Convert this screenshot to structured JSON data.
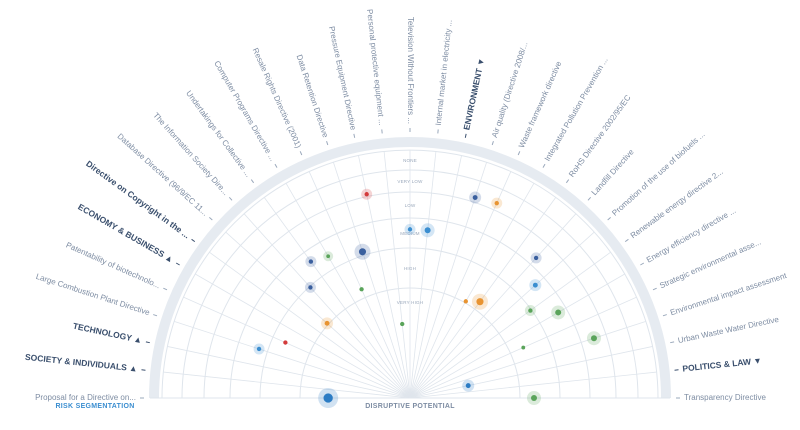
{
  "colors": {
    "accent": "#3b8ed0",
    "label": "#7e8da3",
    "category": "#3a4f6d",
    "ring_line": "#dfe5ec",
    "outer_band": "#e6ebf1"
  },
  "rings": [
    "NONE",
    "VERY LOW",
    "LOW",
    "MEDIUM",
    "HIGH",
    "VERY HIGH"
  ],
  "axis_label": "DISRUPTIVE POTENTIAL",
  "segmentation_label": "RISK SEGMENTATION",
  "items": [
    {
      "label": "Proposal for a Directive on...",
      "type": "item",
      "dot": {
        "r": 0.33,
        "color": "#2c7cc4",
        "size": 7,
        "halo": true
      }
    },
    {
      "label": "SOCIETY & INDIVIDUALS ▲",
      "type": "category"
    },
    {
      "label": "TECHNOLOGY ▲",
      "type": "category"
    },
    {
      "label": "Large Combustion Plant Directive",
      "type": "item",
      "dot": {
        "r": 0.64,
        "color": "#3b8ed0",
        "size": 2.5,
        "halo": true
      }
    },
    {
      "label": "Patentability of biotechnolo...",
      "type": "item",
      "dot": {
        "r": 0.55,
        "color": "#d33b3b",
        "size": 2.5,
        "halo": false
      }
    },
    {
      "label": "ECONOMY & BUSINESS ▲",
      "type": "category"
    },
    {
      "label": "Directive on Copyright in the ...",
      "type": "category"
    },
    {
      "label": "Database Directive (96/9/EC 11...",
      "type": "item",
      "dot": {
        "r": 0.45,
        "color": "#e89432",
        "size": 3,
        "halo": true
      }
    },
    {
      "label": "The Information Society Dire...",
      "type": "item",
      "dot": {
        "r": 0.6,
        "color": "#3a5f9e",
        "size": 2.5,
        "halo": true
      }
    },
    {
      "label": "Undertakings for Collective ...",
      "type": "item",
      "dot": {
        "r": 0.68,
        "color": "#3a5f9e",
        "size": 2.5,
        "halo": true
      }
    },
    {
      "label": "Computer Programs Directive ...",
      "type": "item",
      "dot": {
        "r": 0.66,
        "color": "#5aa45a",
        "size": 2,
        "halo": true
      }
    },
    {
      "label": "Resale Rights Directive (2001)",
      "type": "item",
      "dot": {
        "r": 0.48,
        "color": "#5aa45a",
        "size": 2.5,
        "halo": false
      }
    },
    {
      "label": "Data Retention Directive",
      "type": "item",
      "dot": {
        "r": 0.62,
        "color": "#3a5f9e",
        "size": 5,
        "halo": true
      }
    },
    {
      "label": "Pressure Equipment Directive",
      "type": "item",
      "dot": {
        "r": 0.84,
        "color": "#d33b3b",
        "size": 2.5,
        "halo": true
      }
    },
    {
      "label": "Personal protective equipment ...",
      "type": "item",
      "dot": {
        "r": 0.3,
        "color": "#5aa45a",
        "size": 2.5,
        "halo": false
      }
    },
    {
      "label": "Television Without Frontiers ...",
      "type": "item",
      "dot": {
        "r": 0.68,
        "color": "#3b8ed0",
        "size": 2.5,
        "halo": true
      }
    },
    {
      "label": "Internal market in electricity ...",
      "type": "item",
      "dot": {
        "r": 0.68,
        "color": "#3b8ed0",
        "size": 4,
        "halo": true
      }
    },
    {
      "label": "ENVIRONMENT ▼",
      "type": "category"
    },
    {
      "label": "Air quality (Directive 2008/...",
      "type": "item",
      "dot": {
        "r": 0.85,
        "color": "#3a5f9e",
        "size": 3,
        "halo": true
      }
    },
    {
      "label": "Waste framework directive",
      "type": "item",
      "dot": {
        "r": 0.86,
        "color": "#e89432",
        "size": 2.5,
        "halo": true
      }
    },
    {
      "label": "Integrated Pollution Prevention ...",
      "type": "item",
      "dot": {
        "r": 0.45,
        "color": "#e89432",
        "size": 2.5,
        "halo": false
      }
    },
    {
      "label": "RoHS Directive 2002/95/EC",
      "type": "item",
      "dot": {
        "r": 0.48,
        "color": "#e89432",
        "size": 5,
        "halo": true
      }
    },
    {
      "label": "Landfill Directive",
      "type": "item",
      "dot": {
        "r": 0.76,
        "color": "#3a5f9e",
        "size": 2.5,
        "halo": true
      }
    },
    {
      "label": "Promotion of the use of biofuels ...",
      "type": "item",
      "dot": {
        "r": 0.68,
        "color": "#3b8ed0",
        "size": 3,
        "halo": true
      }
    },
    {
      "label": "Renewable energy directive 2...",
      "type": "item",
      "dot": {
        "r": 0.6,
        "color": "#5aa45a",
        "size": 2.5,
        "halo": true
      }
    },
    {
      "label": "Energy efficiency directive ...",
      "type": "item",
      "dot": {
        "r": 0.69,
        "color": "#5aa45a",
        "size": 4,
        "halo": true
      }
    },
    {
      "label": "Strategic environmental asse...",
      "type": "item",
      "dot": {
        "r": 0.5,
        "color": "#5aa45a",
        "size": 2,
        "halo": false
      }
    },
    {
      "label": "Environmental impact assessment",
      "type": "item",
      "dot": {
        "r": 0.78,
        "color": "#5aa45a",
        "size": 4,
        "halo": true
      }
    },
    {
      "label": "Urban Waste Water Directive",
      "type": "item",
      "dot": {
        "r": 0.24,
        "color": "#2c7cc4",
        "size": 3,
        "halo": true
      }
    },
    {
      "label": "POLITICS & LAW ▼",
      "type": "category"
    },
    {
      "label": "Transparency Directive",
      "type": "item",
      "dot": {
        "r": 0.5,
        "color": "#5aa45a",
        "size": 4,
        "halo": true
      }
    }
  ]
}
